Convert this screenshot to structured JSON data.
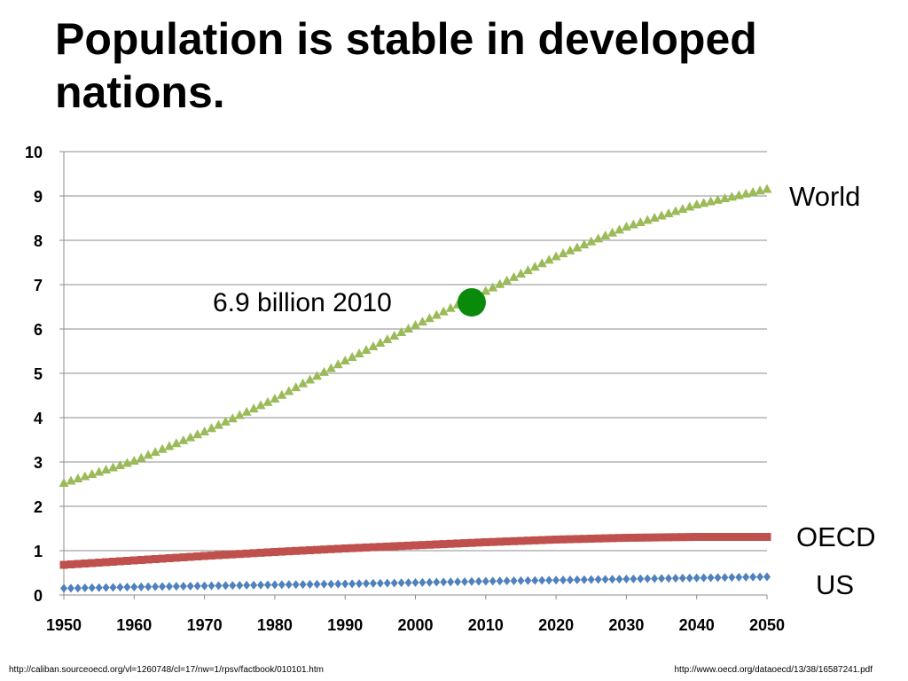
{
  "title": "Population is stable in developed nations.",
  "labels": {
    "world": "World",
    "oecd": "OECD",
    "us": "US",
    "annotation": "6.9 billion 2010"
  },
  "footer": {
    "left_url": "http://caliban.sourceoecd.org/vl=1260748/cl=17/nw=1/rpsv/factbook/010101.htm",
    "right_url": "http://www.oecd.org/dataoecd/13/38/16587241.pdf"
  },
  "colors": {
    "world": "#9BBB59",
    "oecd": "#C0504D",
    "us": "#4F81BD",
    "marker": "#0A8A0A",
    "grid": "#8C8C8C"
  },
  "chart_data": {
    "type": "line",
    "title": "",
    "xlabel": "",
    "ylabel": "",
    "xlim": [
      1950,
      2050
    ],
    "ylim": [
      0,
      10
    ],
    "grid": true,
    "xticks": [
      1950,
      1960,
      1970,
      1980,
      1990,
      2000,
      2010,
      2020,
      2030,
      2040,
      2050
    ],
    "yticks": [
      0,
      1,
      2,
      3,
      4,
      5,
      6,
      7,
      8,
      9,
      10
    ],
    "x": [
      1950,
      1960,
      1970,
      1980,
      1990,
      2000,
      2010,
      2020,
      2030,
      2040,
      2050
    ],
    "series": [
      {
        "name": "World",
        "marker": "triangle",
        "values": [
          2.52,
          3.02,
          3.68,
          4.42,
          5.28,
          6.08,
          6.85,
          7.63,
          8.3,
          8.8,
          9.15
        ]
      },
      {
        "name": "OECD",
        "marker": "square",
        "values": [
          0.68,
          0.78,
          0.88,
          0.97,
          1.05,
          1.12,
          1.19,
          1.25,
          1.29,
          1.31,
          1.31
        ]
      },
      {
        "name": "US",
        "marker": "diamond",
        "values": [
          0.15,
          0.18,
          0.205,
          0.23,
          0.25,
          0.28,
          0.31,
          0.335,
          0.36,
          0.385,
          0.41
        ]
      }
    ],
    "annotation": {
      "x": 2008,
      "y": 6.6
    }
  }
}
